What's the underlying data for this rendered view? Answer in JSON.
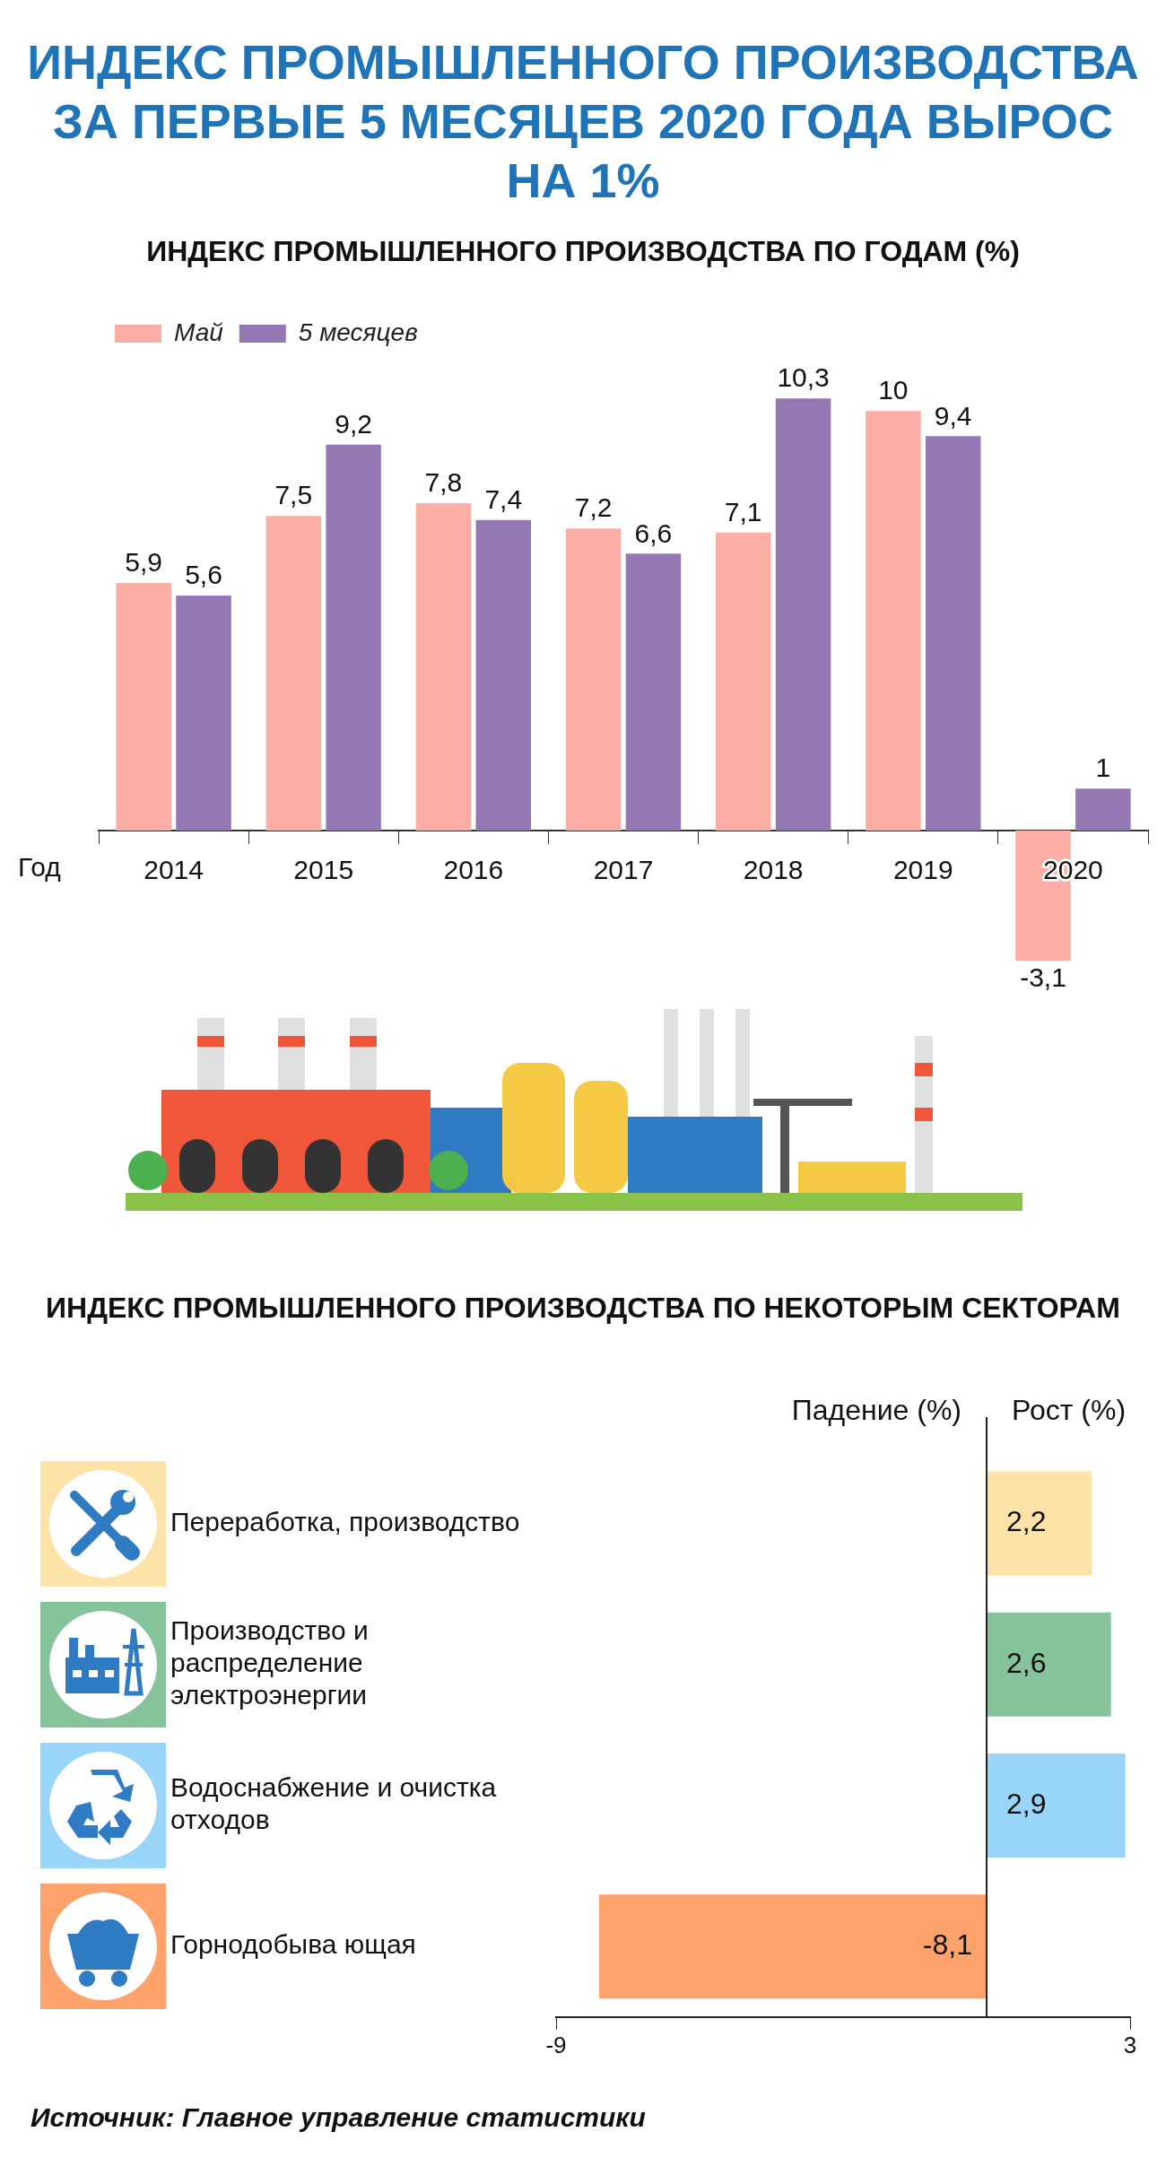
{
  "chart_data": [
    {
      "type": "bar",
      "title": "ИНДЕКС ПРОМЫШЛЕННОГО ПРОИЗВОДСТВА ЗА ПЕРВЫЕ 5 МЕСЯЦЕВ 2020 ГОДА ВЫРОС НА 1%",
      "subtitle": "ИНДЕКС ПРОМЫШЛЕННОГО ПРОИЗВОДСТВА ПО ГОДАМ (%)",
      "xlabel": "Год",
      "categories": [
        "2014",
        "2015",
        "2016",
        "2017",
        "2018",
        "2019",
        "2020"
      ],
      "series": [
        {
          "name": "Май",
          "color": "#fcaea5",
          "values": [
            5.9,
            7.5,
            7.8,
            7.2,
            7.1,
            10,
            -3.1
          ],
          "value_labels": [
            "5,9",
            "7,5",
            "7,8",
            "7,2",
            "7,1",
            "10",
            "-3,1"
          ]
        },
        {
          "name": "5 месяцев",
          "color": "#9378b4",
          "values": [
            5.6,
            9.2,
            7.4,
            6.6,
            10.3,
            9.4,
            1
          ],
          "value_labels": [
            "5,6",
            "9,2",
            "7,4",
            "6,6",
            "10,3",
            "9,4",
            "1"
          ]
        }
      ],
      "legend": "top left",
      "tick_labels": "x"
    },
    {
      "type": "bar",
      "orientation": "horizontal",
      "title": "ИНДЕКС ПРОМЫШЛЕННОГО ПРОИЗВОДСТВА ПО НЕКОТОРЫМ СЕКТОРАМ",
      "categories": [
        "Переработка, производство",
        "Производство и распределение электроэнергии",
        "Водоснабжение и очистка отходов",
        "Горнодобыва ющая"
      ],
      "values": [
        2.2,
        2.6,
        2.9,
        -8.1
      ],
      "value_labels": [
        "2,2",
        "2,6",
        "2,9",
        "-8,1"
      ],
      "colors": [
        "#fde3a7",
        "#85c49a",
        "#99d5f9",
        "#fda26b"
      ],
      "xlim": [
        -9,
        3
      ],
      "xticks": [
        -9,
        3
      ],
      "annotations": [
        "Падение (%)",
        "Рост (%)",
        "Источник: Главное управление статистики"
      ]
    }
  ]
}
